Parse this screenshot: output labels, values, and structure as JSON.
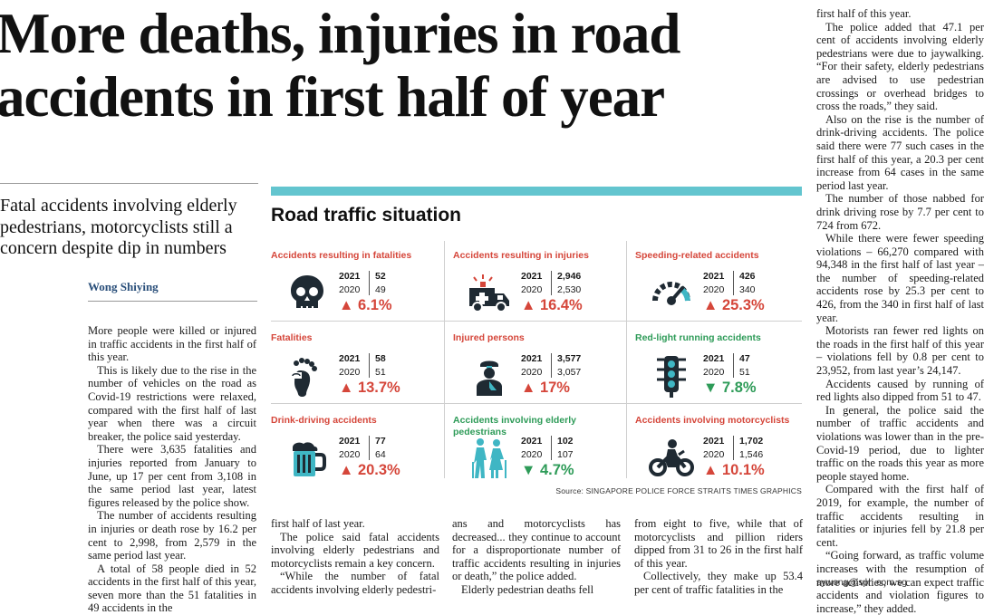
{
  "article": {
    "headline": "More deaths, injuries in road accidents in first half of year",
    "dek": "Fatal accidents involving elderly pedestrians, motorcyclists still a concern despite dip in numbers",
    "byline": "Wong Shiying",
    "email": "sywong@sph.com.sg",
    "col_a": [
      "More people were killed or injured in traffic accidents in the first half of this year.",
      "This is likely due to the rise in the number of vehicles on the road as Covid-19 restrictions were relaxed, compared with the first half of last year when there was a circuit breaker, the police said yesterday.",
      "There were 3,635 fatalities and injuries reported from January to June, up 17 per cent from 3,108 in the same period last year, latest figures released by the police show.",
      "The number of accidents resulting in injuries or death rose by 16.2 per cent to 2,998, from 2,579 in the same period last year.",
      "A total of 58 people died in 52 accidents in the first half of this year, seven more than the 51 fatalities in 49 accidents in the"
    ],
    "col_b": [
      "first half of last year.",
      "The police said fatal accidents involving elderly pedestrians and motorcyclists remain a key concern.",
      "“While the number of fatal accidents involving elderly pedestri-"
    ],
    "col_c": [
      "ans and motorcyclists has decreased... they continue to account for a disproportionate number of traffic accidents resulting in injuries or death,” the police added.",
      "Elderly pedestrian deaths fell"
    ],
    "col_d": [
      "from eight to five, while that of motorcyclists and pillion riders dipped from 31 to 26 in the first half of this year.",
      "Collectively, they make up 53.4 per cent of traffic fatalities in the"
    ],
    "col_e": [
      "first half of this year.",
      "The police added that 47.1 per cent of accidents involving elderly pedestrians were due to jaywalking. “For their safety, elderly pedestrians are advised to use pedestrian crossings or overhead bridges to cross the roads,” they said.",
      "Also on the rise is the number of drink-driving accidents. The police said there were 77 such cases in the first half of this year, a 20.3 per cent increase from 64 cases in the same period last year.",
      "The number of those nabbed for drink driving rose by 7.7 per cent to 724 from 672.",
      "While there were fewer speeding violations – 66,270 compared with 94,348 in the first half of last year – the number of speeding-related accidents rose by 25.3 per cent to 426, from the 340 in first half of last year.",
      "Motorists ran fewer red lights on the roads in the first half of this year – violations fell by 0.8 per cent to 23,952, from last year’s 24,147.",
      "Accidents caused by running of red lights also dipped from 51 to 47.",
      "In general, the police said the number of traffic accidents and violations was lower than in the pre-Covid-19 period, due to lighter traffic on the roads this year as more people stayed home.",
      "Compared with the first half of 2019, for example, the number of traffic accidents resulting in fatalities or injuries fell by 21.8 per cent.",
      "“Going forward, as traffic volume increases with the resumption of more activities, we can expect traffic accidents and violation figures to increase,” they added."
    ]
  },
  "graphic": {
    "title": "Road traffic situation",
    "source": "Source: SINGAPORE POLICE FORCE   STRAITS TIMES GRAPHICS",
    "year_current": "2021",
    "year_previous": "2020",
    "colors": {
      "up": "#d5463a",
      "down": "#2e9b58",
      "bar": "#63c5cf",
      "icon": "#1f2a33",
      "accent_teal": "#3fb6c4"
    },
    "cells": [
      {
        "title": "Accidents resulting in fatalities",
        "icon": "skull-icon",
        "v2021": "52",
        "v2020": "49",
        "change": "6.1%",
        "direction": "up",
        "arrow": "▲"
      },
      {
        "title": "Accidents resulting in injuries",
        "icon": "ambulance-icon",
        "v2021": "2,946",
        "v2020": "2,530",
        "change": "16.4%",
        "direction": "up",
        "arrow": "▲"
      },
      {
        "title": "Speeding-related accidents",
        "icon": "speedometer-icon",
        "v2021": "426",
        "v2020": "340",
        "change": "25.3%",
        "direction": "up",
        "arrow": "▲"
      },
      {
        "title": "Fatalities",
        "icon": "footprint-icon",
        "v2021": "58",
        "v2020": "51",
        "change": "13.7%",
        "direction": "up",
        "arrow": "▲"
      },
      {
        "title": "Injured persons",
        "icon": "injured-person-icon",
        "v2021": "3,577",
        "v2020": "3,057",
        "change": "17%",
        "direction": "up",
        "arrow": "▲"
      },
      {
        "title": "Red-light running accidents",
        "icon": "traffic-light-icon",
        "v2021": "47",
        "v2020": "51",
        "change": "7.8%",
        "direction": "down",
        "arrow": "▼"
      },
      {
        "title": "Drink-driving accidents",
        "icon": "beer-mug-icon",
        "v2021": "77",
        "v2020": "64",
        "change": "20.3%",
        "direction": "up",
        "arrow": "▲"
      },
      {
        "title": "Accidents involving elderly pedestrians",
        "icon": "elderly-pedestrians-icon",
        "v2021": "102",
        "v2020": "107",
        "change": "4.7%",
        "direction": "down",
        "arrow": "▼"
      },
      {
        "title": "Accidents involving motorcyclists",
        "icon": "motorcycle-icon",
        "v2021": "1,702",
        "v2020": "1,546",
        "change": "10.1%",
        "direction": "up",
        "arrow": "▲"
      }
    ]
  }
}
